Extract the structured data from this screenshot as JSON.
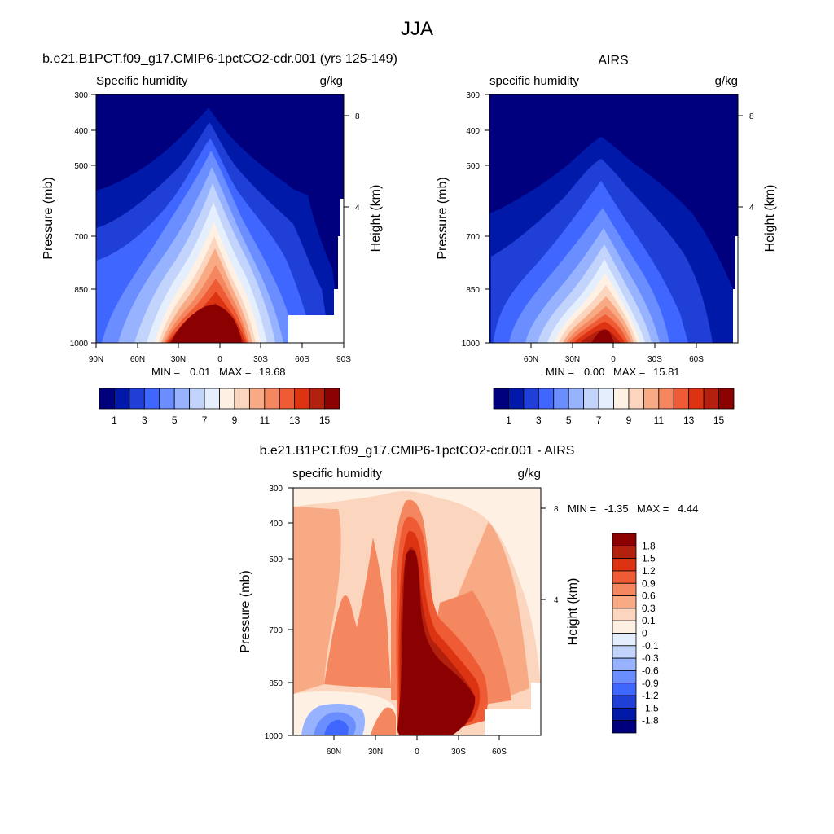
{
  "title": "JJA",
  "colors": {
    "model_scale": [
      "#00007f",
      "#0019a8",
      "#1f3fd6",
      "#3f66ff",
      "#6a8dff",
      "#97b3ff",
      "#c2d4fb",
      "#e4eefc",
      "#fff0e4",
      "#fbd5bd",
      "#f8aa85",
      "#f4875f",
      "#ee5b34",
      "#dc3412",
      "#b4200e",
      "#8b0000"
    ],
    "diff_scale": [
      "#00007f",
      "#0019a8",
      "#1f3fd6",
      "#3f66ff",
      "#6a8dff",
      "#97b3ff",
      "#c2d4fb",
      "#e4eefc",
      "#fff0e4",
      "#fbd5bd",
      "#f8aa85",
      "#f4875f",
      "#ee5b34",
      "#dc3412",
      "#b4200e",
      "#8b0000"
    ]
  },
  "chart_data": [
    {
      "type": "contour",
      "title": "b.e21.B1PCT.f09_g17.CMIP6-1pctCO2-cdr.001 (yrs 125-149)",
      "subtitle_left": "Specific humidity",
      "subtitle_right": "g/kg",
      "ylabel": "Pressure (mb)",
      "y2label": "Height (km)",
      "yticks": [
        "300",
        "400",
        "500",
        "700",
        "850",
        "1000"
      ],
      "y2ticks": [
        "8",
        "4"
      ],
      "xticks": [
        "90N",
        "60N",
        "30N",
        "0",
        "30S",
        "60S",
        "90S"
      ],
      "stats": {
        "min_label": "MIN =",
        "min": "0.01",
        "max_label": "MAX =",
        "max": "19.68"
      },
      "colorbar_labels": [
        "1",
        "3",
        "5",
        "7",
        "9",
        "11",
        "13",
        "15"
      ],
      "peak_index": 15
    },
    {
      "type": "contour",
      "title": "AIRS",
      "subtitle_left": "specific humidity",
      "subtitle_right": "g/kg",
      "ylabel": "Pressure (mb)",
      "y2label": "Height (km)",
      "yticks": [
        "300",
        "400",
        "500",
        "700",
        "850",
        "1000"
      ],
      "y2ticks": [
        "8",
        "4"
      ],
      "xticks": [
        "60N",
        "30N",
        "0",
        "30S",
        "60S"
      ],
      "stats": {
        "min_label": "MIN =",
        "min": "0.00",
        "max_label": "MAX =",
        "max": "15.81"
      },
      "colorbar_labels": [
        "1",
        "3",
        "5",
        "7",
        "9",
        "11",
        "13",
        "15"
      ],
      "peak_index": 15
    },
    {
      "type": "contour",
      "title": "b.e21.B1PCT.f09_g17.CMIP6-1pctCO2-cdr.001 - AIRS",
      "subtitle_left": "specific humidity",
      "subtitle_right": "g/kg",
      "ylabel": "Pressure (mb)",
      "y2label": "Height (km)",
      "yticks": [
        "300",
        "400",
        "500",
        "700",
        "850",
        "1000"
      ],
      "y2ticks": [
        "8",
        "4"
      ],
      "xticks": [
        "60N",
        "30N",
        "0",
        "30S",
        "60S"
      ],
      "stats": {
        "min_label": "MIN =",
        "min": "-1.35",
        "max_label": "MAX =",
        "max": "4.44"
      },
      "colorbar_labels": [
        "1.8",
        "1.5",
        "1.2",
        "0.9",
        "0.6",
        "0.3",
        "0.1",
        "0",
        "-0.1",
        "-0.3",
        "-0.6",
        "-0.9",
        "-1.2",
        "-1.5",
        "-1.8"
      ]
    }
  ]
}
